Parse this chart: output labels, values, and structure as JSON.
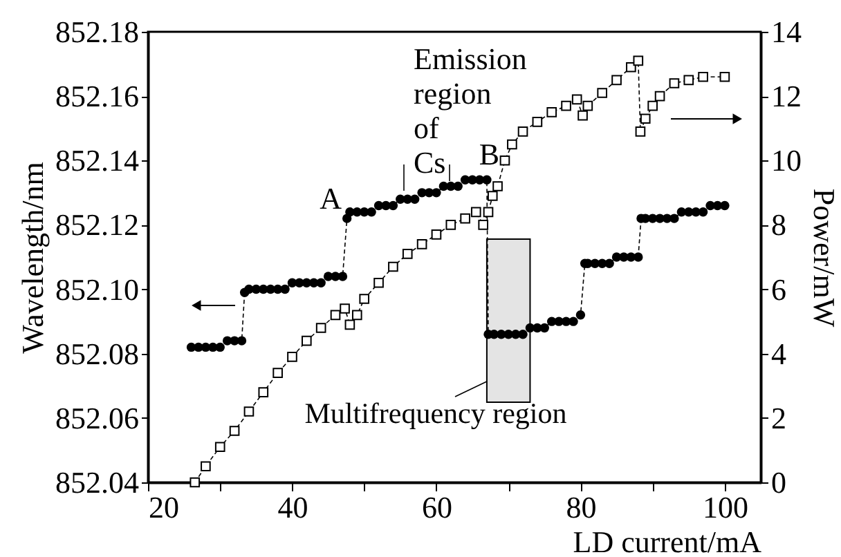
{
  "chart_data": {
    "type": "line",
    "xlabel": "LD current/mA",
    "ylabel": "Wavelength/nm",
    "y2label": "Power/mW",
    "xlim": [
      20,
      105
    ],
    "xticks": [
      20,
      {
        "value": 30,
        "label": null
      },
      40,
      {
        "value": 50,
        "label": null
      },
      60,
      {
        "value": 70,
        "label": null
      },
      80,
      {
        "value": 90,
        "label": null
      },
      100
    ],
    "ylim": [
      852.04,
      852.18
    ],
    "yticks": [
      852.04,
      852.06,
      852.08,
      {
        "value": 852.1,
        "label": "852.10"
      },
      852.12,
      852.14,
      852.16,
      852.18
    ],
    "y2lim": [
      0,
      14
    ],
    "y2ticks": [
      0,
      2,
      4,
      6,
      8,
      10,
      12,
      14
    ],
    "grid": false,
    "series": [
      {
        "color": "#000000",
        "marker": "circle",
        "line_style": "dashed",
        "x": [
          26,
          27,
          28,
          29,
          30,
          31,
          32,
          33,
          33.4,
          34,
          35,
          36,
          37,
          38,
          39,
          40,
          41,
          42,
          43,
          44,
          45,
          46,
          47,
          47.6,
          48,
          49,
          50,
          51,
          52,
          53,
          54,
          55,
          56,
          57,
          58,
          59,
          60,
          61,
          62,
          63,
          64,
          65,
          66,
          67,
          67.2,
          68,
          69,
          70,
          71,
          72,
          73,
          74,
          75,
          76,
          77,
          78,
          79,
          80,
          80.6,
          81,
          82,
          83,
          84,
          85,
          86,
          87,
          88,
          88.4,
          89,
          90,
          91,
          92,
          93,
          94,
          95,
          96,
          97,
          98,
          99,
          100
        ],
        "values": [
          852.082,
          852.082,
          852.082,
          852.082,
          852.082,
          852.084,
          852.084,
          852.084,
          852.099,
          852.1,
          852.1,
          852.1,
          852.1,
          852.1,
          852.1,
          852.102,
          852.102,
          852.102,
          852.102,
          852.102,
          852.104,
          852.104,
          852.104,
          852.122,
          852.124,
          852.124,
          852.124,
          852.124,
          852.126,
          852.126,
          852.126,
          852.128,
          852.128,
          852.128,
          852.13,
          852.13,
          852.13,
          852.132,
          852.132,
          852.132,
          852.134,
          852.134,
          852.134,
          852.134,
          852.086,
          852.086,
          852.086,
          852.086,
          852.086,
          852.086,
          852.088,
          852.088,
          852.088,
          852.09,
          852.09,
          852.09,
          852.09,
          852.092,
          852.108,
          852.108,
          852.108,
          852.108,
          852.108,
          852.11,
          852.11,
          852.11,
          852.11,
          852.122,
          852.122,
          852.122,
          852.122,
          852.122,
          852.122,
          852.124,
          852.124,
          852.124,
          852.124,
          852.126,
          852.126,
          852.126
        ]
      },
      {
        "color": "#000000",
        "marker": "square",
        "line_style": "dashed",
        "axis": "y2",
        "x": [
          26.5,
          28,
          30,
          32,
          34,
          36,
          38,
          40,
          42,
          44,
          46,
          47.3,
          48,
          49,
          50,
          52,
          54,
          56,
          58,
          60,
          62,
          64,
          65.5,
          66.5,
          67.2,
          67.8,
          68.5,
          69.5,
          70.5,
          72,
          74,
          76,
          78,
          79.5,
          80.3,
          81,
          83,
          85,
          87,
          88,
          88.3,
          89,
          90,
          91,
          93,
          95,
          97,
          100
        ],
        "values": [
          0,
          0.5,
          1.1,
          1.6,
          2.2,
          2.8,
          3.4,
          3.9,
          4.4,
          4.8,
          5.2,
          5.4,
          4.9,
          5.2,
          5.7,
          6.2,
          6.7,
          7.1,
          7.4,
          7.7,
          8.0,
          8.2,
          8.4,
          8.0,
          8.4,
          8.9,
          9.2,
          10.0,
          10.5,
          10.9,
          11.2,
          11.5,
          11.7,
          11.9,
          11.4,
          11.7,
          12.1,
          12.5,
          12.9,
          13.1,
          10.9,
          11.3,
          11.7,
          12.0,
          12.4,
          12.5,
          12.6,
          12.6
        ]
      }
    ],
    "bands": [
      {
        "axis": "x",
        "from": 67,
        "to": 73,
        "label": "Multifrequency region"
      }
    ],
    "annotations": [
      "Emission region of Cs",
      "A",
      "B"
    ]
  }
}
